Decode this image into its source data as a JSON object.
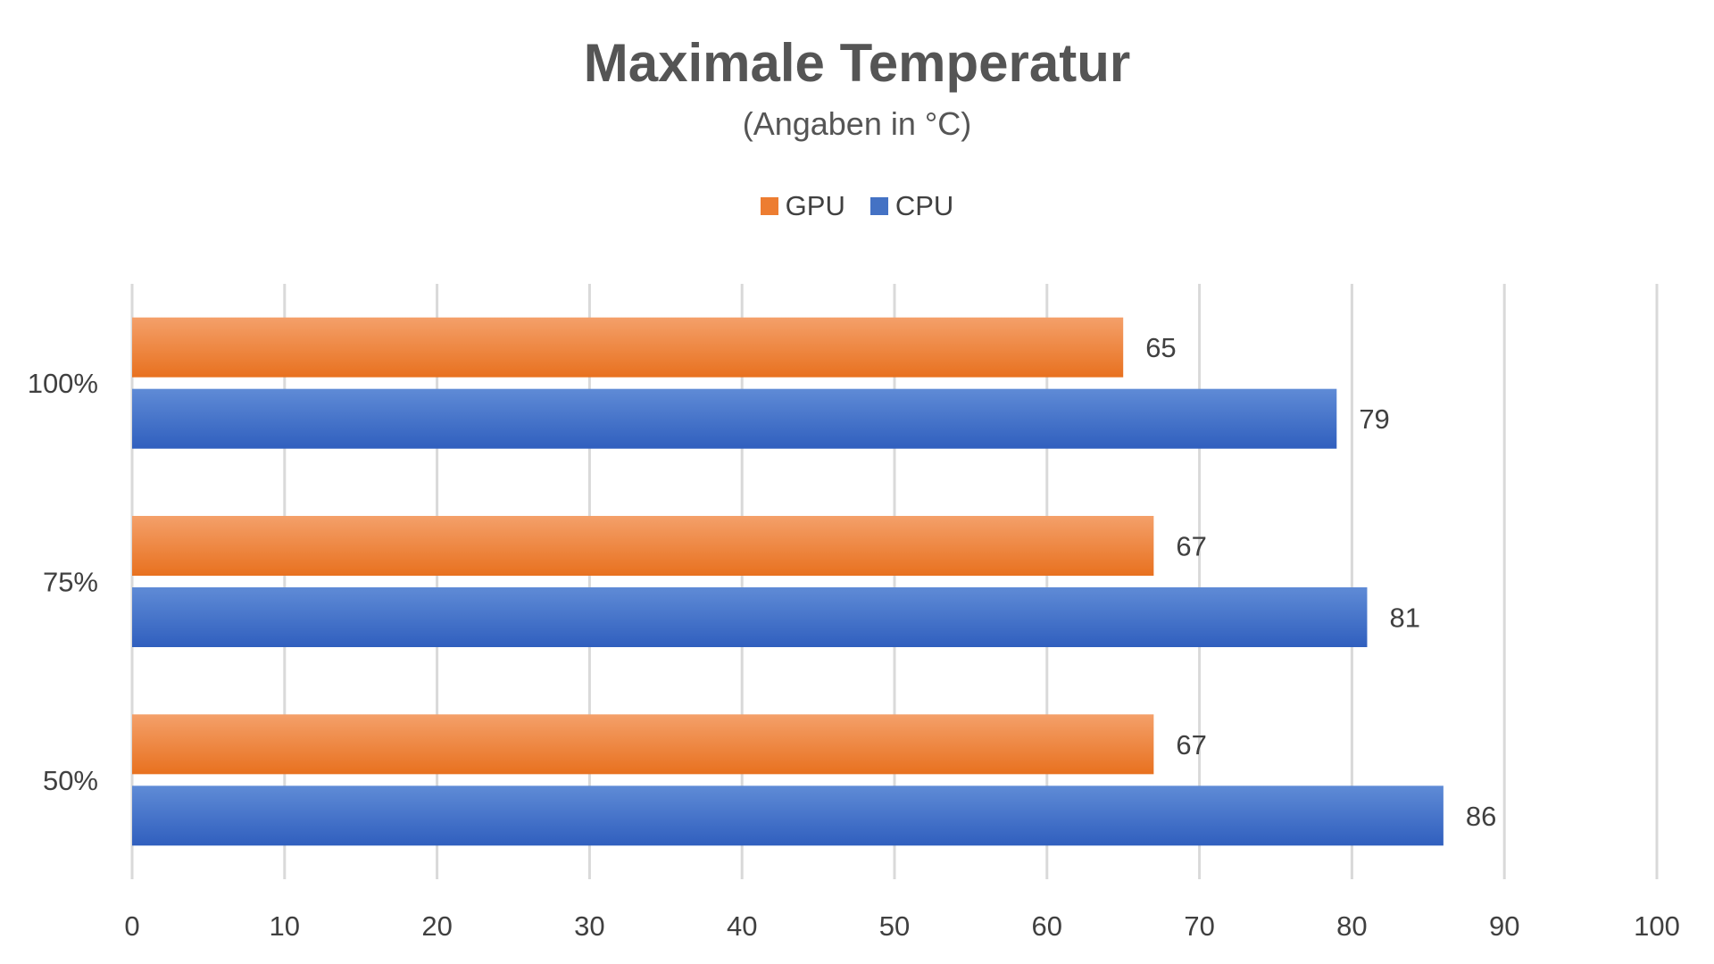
{
  "chart_data": {
    "type": "bar",
    "orientation": "horizontal",
    "title": "Maximale Temperatur",
    "subtitle": "(Angaben in °C)",
    "categories": [
      "100%",
      "75%",
      "50%"
    ],
    "series": [
      {
        "name": "GPU",
        "color": "#ED7D31",
        "values": [
          65,
          67,
          67
        ]
      },
      {
        "name": "CPU",
        "color": "#4472C4",
        "values": [
          79,
          81,
          86
        ]
      }
    ],
    "xlim": [
      0,
      100
    ],
    "x_ticks": [
      0,
      10,
      20,
      30,
      40,
      50,
      60,
      70,
      80,
      90,
      100
    ],
    "grid": true,
    "legend_position": "top",
    "data_labels": true
  }
}
